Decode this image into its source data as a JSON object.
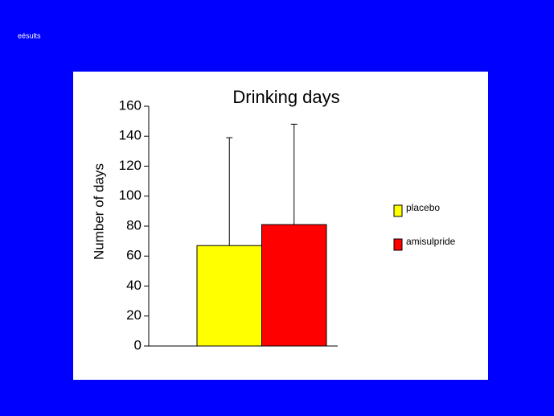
{
  "header": "eésults",
  "chart_data": {
    "type": "bar",
    "title": "Drinking days",
    "y_label": "Number of days",
    "series": [
      {
        "name": "placebo",
        "color": "#ffff00",
        "values": [
          67
        ],
        "errors": [
          72
        ]
      },
      {
        "name": "amisulpride",
        "color": "#ff0000",
        "values": [
          81
        ],
        "errors": [
          67
        ]
      }
    ],
    "ylim": [
      0,
      160
    ],
    "yticks": [
      0,
      20,
      40,
      60,
      80,
      100,
      120,
      140,
      160
    ],
    "grid": false,
    "legend": "right"
  }
}
